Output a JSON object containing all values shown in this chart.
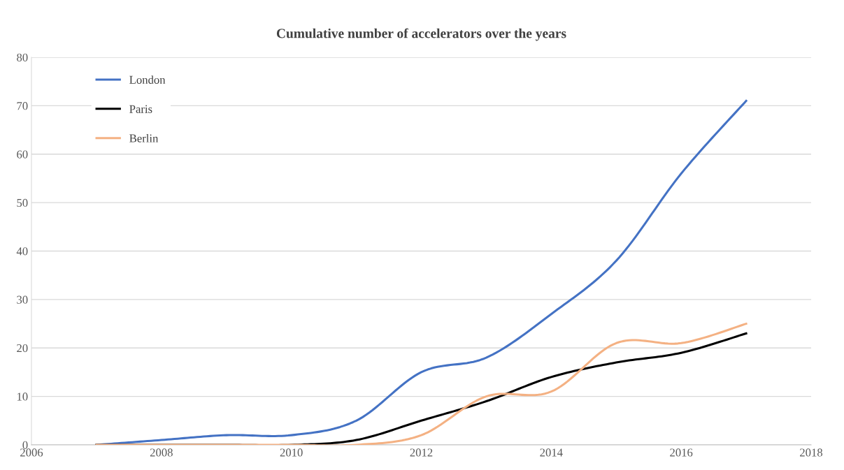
{
  "chart_data": {
    "type": "line",
    "title": "Cumulative number of accelerators over the years",
    "x": [
      2007,
      2008,
      2009,
      2010,
      2011,
      2012,
      2013,
      2014,
      2015,
      2016,
      2017
    ],
    "series": [
      {
        "name": "London",
        "color": "#4472c4",
        "values": [
          0,
          1,
          2,
          2,
          5,
          15,
          18,
          27,
          38,
          56,
          71
        ]
      },
      {
        "name": "Paris",
        "color": "#000000",
        "values": [
          0,
          0,
          0,
          0,
          1,
          5,
          9,
          14,
          17,
          19,
          23
        ]
      },
      {
        "name": "Berlin",
        "color": "#f4b183",
        "values": [
          0,
          0,
          0,
          0,
          0,
          2,
          10,
          11,
          21,
          21,
          25
        ]
      }
    ],
    "xlim": [
      2006,
      2018
    ],
    "xticks": [
      2006,
      2008,
      2010,
      2012,
      2014,
      2016,
      2018
    ],
    "ylim": [
      0,
      80
    ],
    "yticks": [
      0,
      10,
      20,
      30,
      40,
      50,
      60,
      70,
      80
    ],
    "grid": "y",
    "legend": "top left",
    "marker": "none",
    "line_style": "solid"
  }
}
